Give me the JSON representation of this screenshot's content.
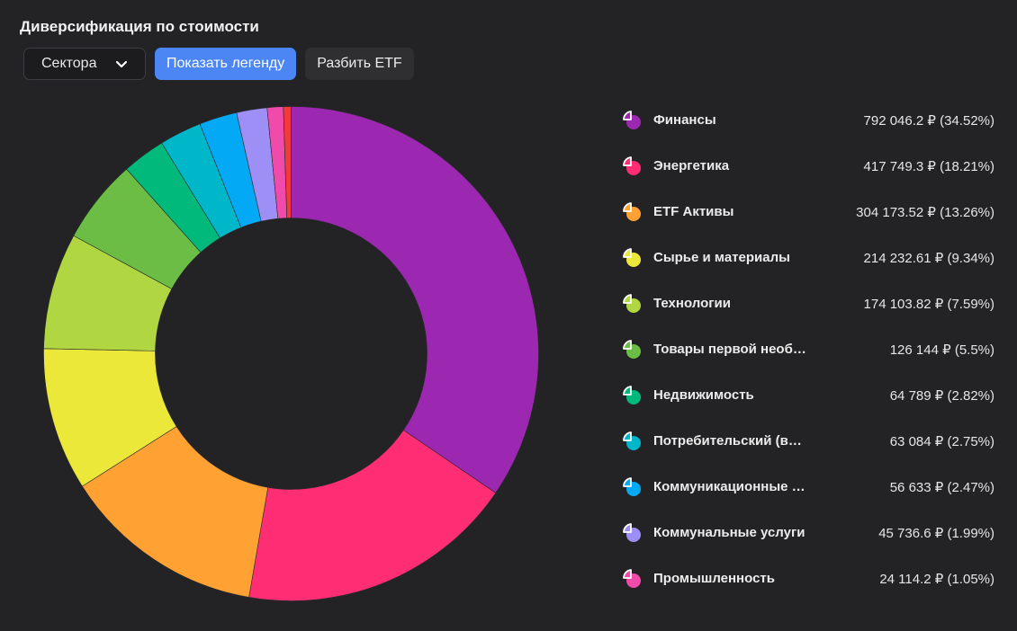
{
  "title": "Диверсификация по стоимости",
  "controls": {
    "dropdown_label": "Сектора",
    "legend_button": "Показать легенду",
    "etf_button": "Разбить ETF"
  },
  "legend": [
    {
      "name": "Финансы",
      "value": "792 046.2 ₽ (34.52%)",
      "color": "#9C27B0"
    },
    {
      "name": "Энергетика",
      "value": "417 749.3 ₽ (18.21%)",
      "color": "#FF2D74"
    },
    {
      "name": "ETF Активы",
      "value": "304 173.52 ₽ (13.26%)",
      "color": "#FFA233"
    },
    {
      "name": "Сырье и материалы",
      "value": "214 232.61 ₽ (9.34%)",
      "color": "#ECE83A"
    },
    {
      "name": "Технологии",
      "value": "174 103.82 ₽ (7.59%)",
      "color": "#B0D641"
    },
    {
      "name": "Товары первой необ…",
      "value": "126 144 ₽ (5.5%)",
      "color": "#6CBD45"
    },
    {
      "name": "Недвижимость",
      "value": "64 789 ₽ (2.82%)",
      "color": "#00B97A"
    },
    {
      "name": "Потребительский (в…",
      "value": "63 084 ₽ (2.75%)",
      "color": "#00B6C9"
    },
    {
      "name": "Коммуникационные …",
      "value": "56 633 ₽ (2.47%)",
      "color": "#03A9F4"
    },
    {
      "name": "Коммунальные услуги",
      "value": "45 736.6 ₽ (1.99%)",
      "color": "#9D8FF5"
    },
    {
      "name": "Промышленность",
      "value": "24 114.2 ₽ (1.05%)",
      "color": "#F04BAA"
    }
  ],
  "chart_data": {
    "type": "pie",
    "title": "Диверсификация по стоимости",
    "categories": [
      "Финансы",
      "Энергетика",
      "ETF Активы",
      "Сырье и материалы",
      "Технологии",
      "Товары первой необ…",
      "Недвижимость",
      "Потребительский (в…",
      "Коммуникационные …",
      "Коммунальные услуги",
      "Промышленность",
      "unlabeled"
    ],
    "values": [
      34.52,
      18.21,
      13.26,
      9.34,
      7.59,
      5.5,
      2.82,
      2.75,
      2.47,
      1.99,
      1.05,
      0.5
    ],
    "colors": [
      "#9C27B0",
      "#FF2D74",
      "#FFA233",
      "#ECE83A",
      "#B0D641",
      "#6CBD45",
      "#00B97A",
      "#00B6C9",
      "#03A9F4",
      "#9D8FF5",
      "#F04BAA",
      "#F23A3A"
    ],
    "donut": true,
    "legend_position": "right"
  }
}
